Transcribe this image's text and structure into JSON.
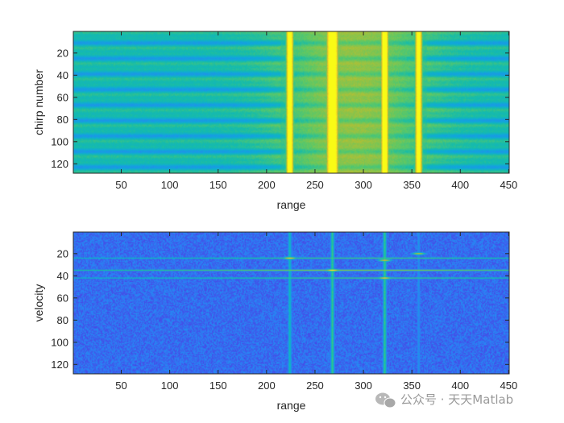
{
  "chart_data": [
    {
      "type": "heatmap",
      "title": "",
      "xlabel": "range",
      "ylabel": "chirp number",
      "xlim": [
        0.5,
        450.5
      ],
      "ylim": [
        0.5,
        128.5
      ],
      "y_direction": "reverse",
      "xticks": [
        50,
        100,
        150,
        200,
        250,
        300,
        350,
        400,
        450
      ],
      "yticks": [
        20,
        40,
        60,
        80,
        100,
        120
      ],
      "colormap": "parula",
      "bright_columns": [
        {
          "range": 224,
          "level": 0.85
        },
        {
          "range": 268,
          "level": 1.0
        },
        {
          "range": 322,
          "level": 0.92
        },
        {
          "range": 357,
          "level": 0.8
        }
      ],
      "background_level": 0.45,
      "horizontal_stripes": "periodic, about every 14 chirps"
    },
    {
      "type": "heatmap",
      "title": "",
      "xlabel": "range",
      "ylabel": "velocity",
      "xlim": [
        0.5,
        450.5
      ],
      "ylim": [
        0.5,
        128.5
      ],
      "y_direction": "reverse",
      "xticks": [
        50,
        100,
        150,
        200,
        250,
        300,
        350,
        400,
        450
      ],
      "yticks": [
        20,
        40,
        60,
        80,
        100,
        120
      ],
      "colormap": "parula",
      "background_level": 0.2,
      "vertical_lines": [
        {
          "range": 224,
          "level": 0.45
        },
        {
          "range": 268,
          "level": 0.55
        },
        {
          "range": 322,
          "level": 0.55
        },
        {
          "range": 357,
          "level": 0.3
        }
      ],
      "horizontal_lines": [
        {
          "velocity": 24,
          "level": 0.55
        },
        {
          "velocity": 35,
          "level": 0.65
        },
        {
          "velocity": 42,
          "level": 0.55
        }
      ],
      "peaks": [
        {
          "range": 224,
          "velocity": 24,
          "level": 0.85
        },
        {
          "range": 322,
          "velocity": 26,
          "level": 0.8
        },
        {
          "range": 357,
          "velocity": 20,
          "level": 0.75
        },
        {
          "range": 268,
          "velocity": 35,
          "level": 0.95
        },
        {
          "range": 322,
          "velocity": 42,
          "level": 0.85
        }
      ]
    }
  ],
  "watermark": {
    "text": "公众号 · 天天Matlab",
    "icon": "wechat-icon"
  }
}
